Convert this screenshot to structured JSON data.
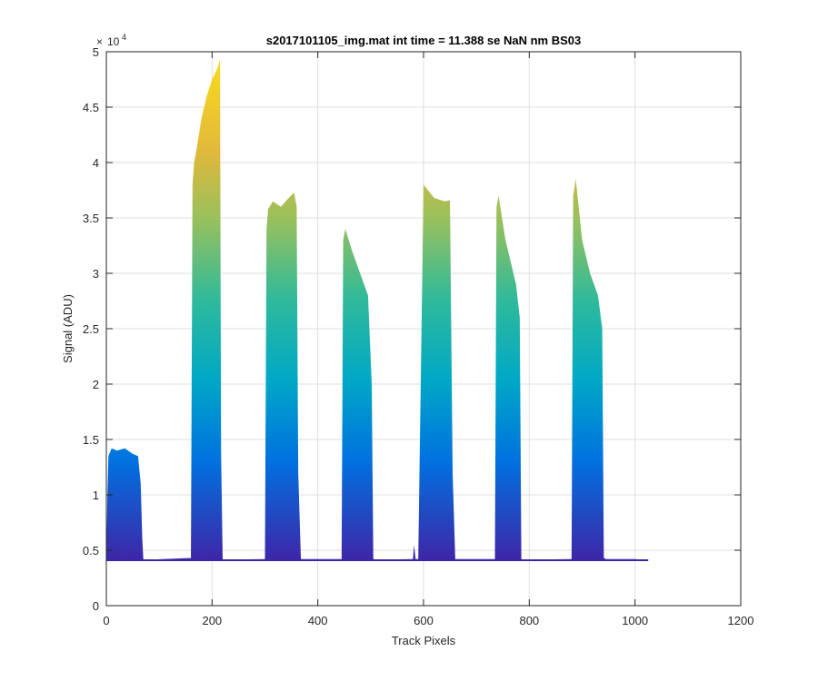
{
  "chart_data": {
    "type": "area",
    "title": "s2017101105_img.mat int time = 11.388 se  NaN nm BS03",
    "xlabel": "Track Pixels",
    "ylabel": "Signal (ADU)",
    "xlim": [
      0,
      1200
    ],
    "ylim": [
      0,
      50000
    ],
    "x_ticks": [
      0,
      200,
      400,
      600,
      800,
      1000,
      1200
    ],
    "y_ticks": [
      0,
      0.5,
      1,
      1.5,
      2,
      2.5,
      3,
      3.5,
      4,
      4.5,
      5
    ],
    "y_exponent": "10",
    "y_exponent_power": "4",
    "grid": true,
    "baseline": 4100,
    "colormap": [
      "#3e26a8",
      "#0072e0",
      "#00a8c6",
      "#2fba9b",
      "#98c05c",
      "#e2b93a",
      "#fadc1d"
    ],
    "series": [
      {
        "x": [
          0,
          2,
          4,
          10,
          20,
          35,
          50,
          60,
          65,
          68,
          70,
          75,
          80,
          160,
          163,
          166,
          170,
          180,
          190,
          200,
          210,
          215,
          217,
          220,
          225,
          300,
          303,
          306,
          315,
          330,
          345,
          355,
          360,
          363,
          368,
          445,
          448,
          452,
          465,
          480,
          495,
          502,
          505,
          510,
          580,
          582,
          585,
          590,
          600,
          620,
          640,
          650,
          655,
          660,
          735,
          738,
          742,
          755,
          765,
          775,
          782,
          785,
          790,
          880,
          883,
          888,
          900,
          915,
          930,
          938,
          941,
          945,
          1000,
          1025
        ],
        "values": [
          4100,
          10000,
          13500,
          14200,
          14000,
          14200,
          13700,
          13500,
          11000,
          6000,
          4200,
          4150,
          4150,
          4300,
          38000,
          40000,
          41000,
          44000,
          46000,
          47500,
          48500,
          49300,
          14000,
          4200,
          4150,
          4200,
          34000,
          35800,
          36500,
          36000,
          36800,
          37300,
          36000,
          12000,
          4200,
          4200,
          33000,
          34000,
          32000,
          30000,
          28000,
          20000,
          4200,
          4150,
          4200,
          5500,
          4200,
          4200,
          38000,
          36800,
          36500,
          36600,
          12000,
          4200,
          4200,
          36000,
          37000,
          33000,
          31000,
          29000,
          26000,
          4200,
          4150,
          4200,
          37000,
          38500,
          33000,
          30000,
          28000,
          25000,
          4300,
          4200,
          4200,
          4100
        ]
      }
    ]
  }
}
